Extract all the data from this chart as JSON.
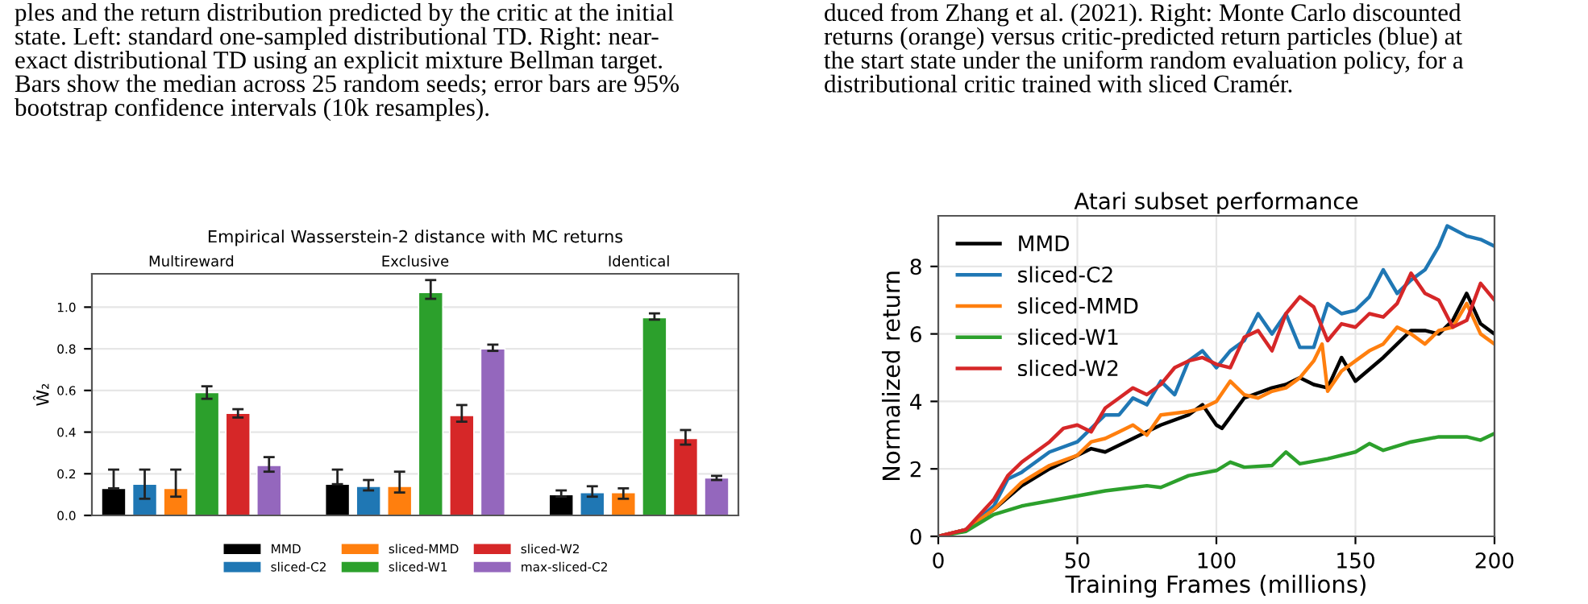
{
  "chart_data": [
    {
      "type": "bar",
      "title": "Empirical Wasserstein-2 distance with MC returns",
      "ylabel": "Ŵ₂",
      "categories": [
        "Multireward",
        "Exclusive",
        "Identical"
      ],
      "ylim": [
        0,
        1.16
      ],
      "yticks": [
        {
          "value": 0,
          "label": "0.0"
        },
        {
          "value": 0.2,
          "label": "0.2"
        },
        {
          "value": 0.4,
          "label": "0.4"
        },
        {
          "value": 0.6,
          "label": "0.6"
        },
        {
          "value": 0.8,
          "label": "0.8"
        },
        {
          "value": 1.0,
          "label": "1.0"
        }
      ],
      "grid": "y",
      "legend": "bottom",
      "annotations": [
        "ples and the return distribution predicted by the critic at the initial\nstate. Left: standard one-sampled distributional TD. Right: near-\nexact distributional TD using an explicit mixture Bellman target.\nBars show the median across 25 random seeds; error bars are 95%\nbootstrap confidence intervals (10k resamples)."
      ],
      "series": [
        {
          "name": "MMD",
          "color": "#000000",
          "values": [
            0.13,
            0.15,
            0.1
          ],
          "errors": [
            [
              0.13,
              0.22
            ],
            [
              0.15,
              0.22
            ],
            [
              0.09,
              0.12
            ]
          ]
        },
        {
          "name": "sliced-C2",
          "color": "#1f77b4",
          "values": [
            0.15,
            0.14,
            0.11
          ],
          "errors": [
            [
              0.08,
              0.22
            ],
            [
              0.12,
              0.17
            ],
            [
              0.09,
              0.14
            ]
          ]
        },
        {
          "name": "sliced-MMD",
          "color": "#ff7f0e",
          "values": [
            0.13,
            0.14,
            0.11
          ],
          "errors": [
            [
              0.09,
              0.22
            ],
            [
              0.11,
              0.21
            ],
            [
              0.08,
              0.13
            ]
          ]
        },
        {
          "name": "sliced-W1",
          "color": "#2ca02c",
          "values": [
            0.59,
            1.07,
            0.95
          ],
          "errors": [
            [
              0.56,
              0.62
            ],
            [
              1.04,
              1.13
            ],
            [
              0.94,
              0.97
            ]
          ]
        },
        {
          "name": "sliced-W2",
          "color": "#d62728",
          "values": [
            0.49,
            0.48,
            0.37
          ],
          "errors": [
            [
              0.47,
              0.51
            ],
            [
              0.45,
              0.53
            ],
            [
              0.34,
              0.41
            ]
          ]
        },
        {
          "name": "max-sliced-C2",
          "color": "#9467bd",
          "values": [
            0.24,
            0.8,
            0.18
          ],
          "errors": [
            [
              0.21,
              0.28
            ],
            [
              0.79,
              0.82
            ],
            [
              0.17,
              0.19
            ]
          ]
        }
      ]
    },
    {
      "type": "line",
      "title": "Atari subset performance",
      "xlabel": "Training Frames (millions)",
      "ylabel": "Normalized return",
      "xlim": [
        0,
        200
      ],
      "xticks": [
        0,
        50,
        100,
        150,
        200
      ],
      "ylim": [
        0,
        9.5
      ],
      "yticks": [
        0,
        2,
        4,
        6,
        8
      ],
      "grid": true,
      "legend": "top left",
      "annotations": [
        "duced from Zhang et al. (2021). Right: Monte Carlo discounted\nreturns (orange) versus critic-predicted return particles (blue) at\nthe start state under the uniform random evaluation policy, for a\ndistributional critic trained with sliced Cramér."
      ],
      "series": [
        {
          "name": "MMD",
          "color": "#000000",
          "x": [
            0,
            10,
            20,
            30,
            40,
            50,
            55,
            60,
            70,
            80,
            90,
            95,
            100,
            102,
            110,
            120,
            125,
            130,
            135,
            140,
            145,
            150,
            160,
            165,
            170,
            175,
            180,
            185,
            190,
            195,
            200
          ],
          "values": [
            0,
            0.2,
            0.8,
            1.5,
            2.0,
            2.4,
            2.6,
            2.5,
            2.9,
            3.3,
            3.6,
            3.9,
            3.3,
            3.2,
            4.1,
            4.4,
            4.5,
            4.7,
            4.5,
            4.4,
            5.3,
            4.6,
            5.3,
            5.7,
            6.1,
            6.1,
            6.0,
            6.4,
            7.2,
            6.3,
            6.0
          ]
        },
        {
          "name": "sliced-C2",
          "color": "#1f77b4",
          "x": [
            0,
            10,
            20,
            25,
            30,
            40,
            50,
            55,
            60,
            65,
            70,
            75,
            80,
            85,
            90,
            95,
            100,
            105,
            110,
            115,
            120,
            125,
            130,
            135,
            140,
            145,
            150,
            155,
            160,
            165,
            170,
            175,
            180,
            183,
            190,
            195,
            200
          ],
          "values": [
            0,
            0.2,
            0.9,
            1.7,
            1.9,
            2.5,
            2.8,
            3.2,
            3.6,
            3.6,
            4.1,
            3.9,
            4.6,
            4.2,
            5.2,
            5.5,
            5.0,
            5.5,
            5.8,
            6.6,
            6.0,
            6.6,
            5.6,
            5.6,
            6.9,
            6.6,
            6.7,
            7.1,
            7.9,
            7.2,
            7.6,
            7.9,
            8.6,
            9.2,
            8.9,
            8.8,
            8.6
          ]
        },
        {
          "name": "sliced-MMD",
          "color": "#ff7f0e",
          "x": [
            0,
            10,
            20,
            30,
            40,
            50,
            55,
            60,
            65,
            70,
            75,
            80,
            90,
            95,
            100,
            105,
            110,
            115,
            120,
            125,
            130,
            135,
            138,
            140,
            145,
            150,
            155,
            160,
            165,
            170,
            175,
            180,
            185,
            190,
            195,
            200
          ],
          "values": [
            0,
            0.2,
            0.8,
            1.6,
            2.1,
            2.4,
            2.8,
            2.9,
            3.1,
            3.3,
            3.0,
            3.6,
            3.7,
            3.8,
            4.0,
            4.6,
            4.2,
            4.1,
            4.3,
            4.4,
            4.7,
            5.2,
            5.7,
            4.3,
            4.9,
            5.2,
            5.5,
            5.7,
            6.2,
            6.0,
            5.7,
            6.1,
            6.2,
            6.9,
            6.0,
            5.7
          ]
        },
        {
          "name": "sliced-W1",
          "color": "#2ca02c",
          "x": [
            0,
            10,
            20,
            30,
            40,
            50,
            60,
            70,
            75,
            80,
            90,
            100,
            105,
            110,
            120,
            125,
            130,
            140,
            150,
            155,
            160,
            170,
            180,
            190,
            195,
            200
          ],
          "values": [
            0,
            0.15,
            0.65,
            0.9,
            1.05,
            1.2,
            1.35,
            1.45,
            1.5,
            1.45,
            1.8,
            1.95,
            2.2,
            2.05,
            2.1,
            2.5,
            2.15,
            2.3,
            2.5,
            2.75,
            2.55,
            2.8,
            2.95,
            2.95,
            2.85,
            3.05
          ]
        },
        {
          "name": "sliced-W2",
          "color": "#d62728",
          "x": [
            0,
            10,
            20,
            25,
            30,
            40,
            45,
            50,
            55,
            60,
            65,
            70,
            75,
            80,
            85,
            90,
            95,
            100,
            105,
            110,
            115,
            120,
            125,
            130,
            135,
            140,
            145,
            150,
            155,
            160,
            165,
            170,
            175,
            180,
            185,
            190,
            195,
            200
          ],
          "values": [
            0,
            0.2,
            1.1,
            1.8,
            2.2,
            2.8,
            3.2,
            3.3,
            3.1,
            3.8,
            4.1,
            4.4,
            4.2,
            4.5,
            5.0,
            5.2,
            5.3,
            5.1,
            5.0,
            5.9,
            6.1,
            5.5,
            6.6,
            7.1,
            6.8,
            5.8,
            6.3,
            6.2,
            6.6,
            6.5,
            6.9,
            7.8,
            7.2,
            7.0,
            6.2,
            6.4,
            7.5,
            7.0
          ]
        }
      ]
    }
  ]
}
